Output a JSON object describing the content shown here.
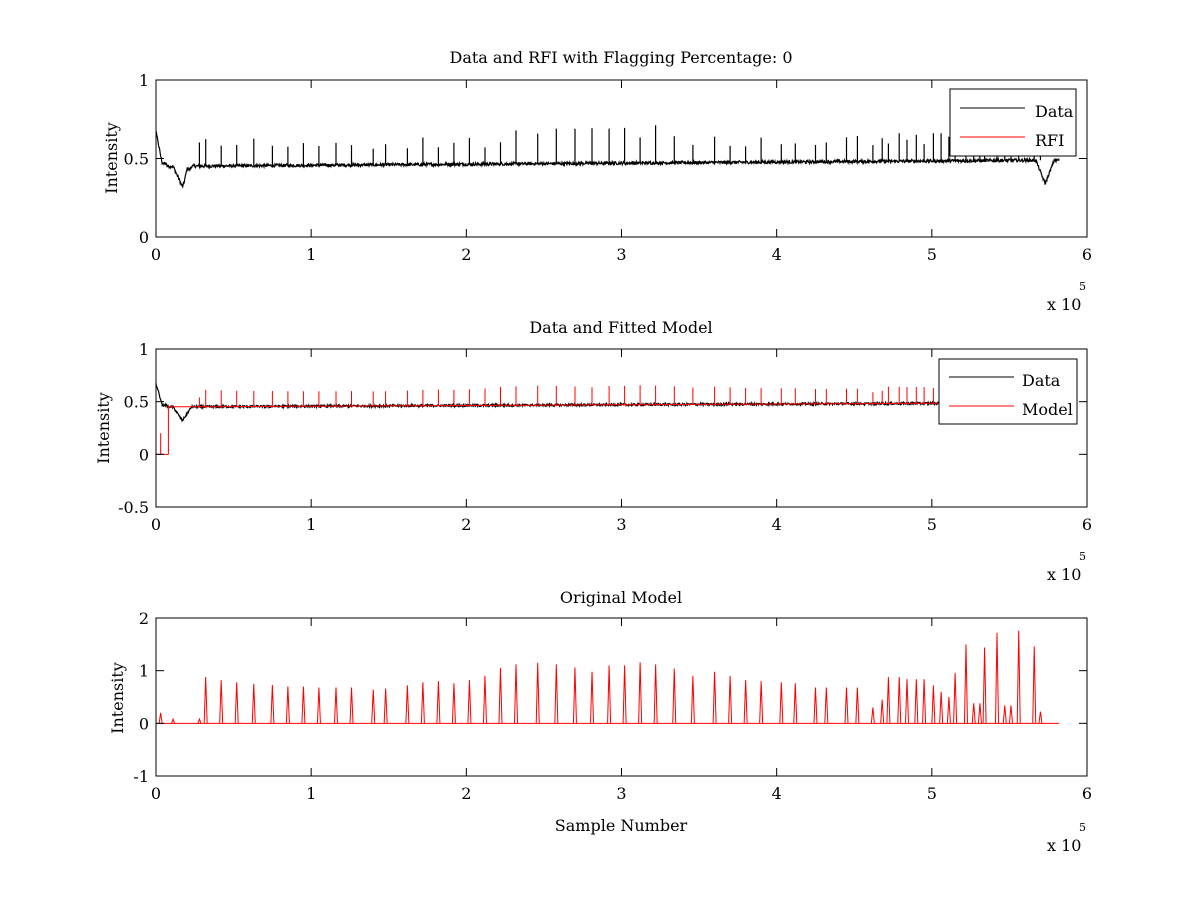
{
  "chart_data": [
    {
      "type": "line",
      "title": "Data and RFI with Flagging Percentage: 0",
      "xlabel": "",
      "ylabel": "Intensity",
      "xlim": [
        0,
        600000
      ],
      "ylim": [
        0,
        1
      ],
      "x_ticks": [
        0,
        1,
        2,
        3,
        4,
        5,
        6
      ],
      "y_ticks": [
        "0",
        "0.5",
        "1"
      ],
      "x_multiplier": {
        "text": "x 10",
        "exponent": "5"
      },
      "grid": false,
      "legend_position": "top-right",
      "series": [
        {
          "name": "Data",
          "color": "#000000",
          "baseline": {
            "start": 0.45,
            "end": 0.49
          },
          "spike_height": 0.6,
          "spike_count": 60,
          "dips": [
            {
              "x": 17000,
              "y": 0.32
            },
            {
              "x": 573000,
              "y": 0.34
            }
          ],
          "start_value": 0.67,
          "x_end": 582000
        },
        {
          "name": "RFI",
          "color": "#ff0000",
          "values": []
        }
      ]
    },
    {
      "type": "line",
      "title": "Data and Fitted Model",
      "xlabel": "",
      "ylabel": "Intensity",
      "xlim": [
        0,
        600000
      ],
      "ylim": [
        -0.5,
        1
      ],
      "x_ticks": [
        0,
        1,
        2,
        3,
        4,
        5,
        6
      ],
      "y_ticks": [
        "-0.5",
        "0",
        "0.5",
        "1"
      ],
      "x_multiplier": {
        "text": "x 10",
        "exponent": "5"
      },
      "grid": false,
      "legend_position": "top-right",
      "series": [
        {
          "name": "Data",
          "color": "#000000",
          "baseline": {
            "start": 0.45,
            "end": 0.49
          },
          "dips": [
            {
              "x": 17000,
              "y": 0.32
            }
          ],
          "start_value": 0.67,
          "x_end": 582000
        },
        {
          "name": "Model",
          "color": "#ff0000",
          "baseline": {
            "start": 0.45,
            "end": 0.49
          },
          "spike_height": 0.62,
          "step": {
            "x_from": 0,
            "x_to": 8000,
            "value": 0.0,
            "spike_at": 3000,
            "spike_value": 0.2
          },
          "x_end": 582000
        }
      ]
    },
    {
      "type": "line",
      "title": "Original Model",
      "xlabel": "Sample Number",
      "ylabel": "Intensity",
      "xlim": [
        0,
        600000
      ],
      "ylim": [
        -1,
        2
      ],
      "x_ticks": [
        0,
        1,
        2,
        3,
        4,
        5,
        6
      ],
      "y_ticks": [
        "-1",
        "0",
        "1",
        "2"
      ],
      "x_multiplier": {
        "text": "x 10",
        "exponent": "5"
      },
      "grid": false,
      "series": [
        {
          "name": "Model",
          "color": "#ff0000",
          "baseline": 0,
          "x_end": 582000,
          "spikes": [
            {
              "x": 3000,
              "y": 0.2
            },
            {
              "x": 11000,
              "y": 0.08
            },
            {
              "x": 28000,
              "y": 0.08
            },
            {
              "x": 32000,
              "y": 0.88
            },
            {
              "x": 42000,
              "y": 0.82
            },
            {
              "x": 52000,
              "y": 0.78
            },
            {
              "x": 63000,
              "y": 0.75
            },
            {
              "x": 75000,
              "y": 0.73
            },
            {
              "x": 85000,
              "y": 0.7
            },
            {
              "x": 95000,
              "y": 0.7
            },
            {
              "x": 105000,
              "y": 0.68
            },
            {
              "x": 116000,
              "y": 0.68
            },
            {
              "x": 126000,
              "y": 0.68
            },
            {
              "x": 140000,
              "y": 0.64
            },
            {
              "x": 148000,
              "y": 0.66
            },
            {
              "x": 162000,
              "y": 0.72
            },
            {
              "x": 172000,
              "y": 0.78
            },
            {
              "x": 182000,
              "y": 0.8
            },
            {
              "x": 192000,
              "y": 0.76
            },
            {
              "x": 202000,
              "y": 0.82
            },
            {
              "x": 212000,
              "y": 0.9
            },
            {
              "x": 222000,
              "y": 1.05
            },
            {
              "x": 232000,
              "y": 1.12
            },
            {
              "x": 246000,
              "y": 1.15
            },
            {
              "x": 258000,
              "y": 1.12
            },
            {
              "x": 270000,
              "y": 1.06
            },
            {
              "x": 281000,
              "y": 0.98
            },
            {
              "x": 292000,
              "y": 1.1
            },
            {
              "x": 302000,
              "y": 1.1
            },
            {
              "x": 312000,
              "y": 1.16
            },
            {
              "x": 322000,
              "y": 1.12
            },
            {
              "x": 334000,
              "y": 1.04
            },
            {
              "x": 346000,
              "y": 0.9
            },
            {
              "x": 360000,
              "y": 0.98
            },
            {
              "x": 370000,
              "y": 0.9
            },
            {
              "x": 380000,
              "y": 0.82
            },
            {
              "x": 390000,
              "y": 0.8
            },
            {
              "x": 403000,
              "y": 0.78
            },
            {
              "x": 412000,
              "y": 0.76
            },
            {
              "x": 425000,
              "y": 0.68
            },
            {
              "x": 432000,
              "y": 0.68
            },
            {
              "x": 445000,
              "y": 0.68
            },
            {
              "x": 452000,
              "y": 0.68
            },
            {
              "x": 462000,
              "y": 0.3
            },
            {
              "x": 468000,
              "y": 0.45
            },
            {
              "x": 472000,
              "y": 0.88
            },
            {
              "x": 479000,
              "y": 0.88
            },
            {
              "x": 484000,
              "y": 0.84
            },
            {
              "x": 490000,
              "y": 0.84
            },
            {
              "x": 495000,
              "y": 0.84
            },
            {
              "x": 501000,
              "y": 0.72
            },
            {
              "x": 506000,
              "y": 0.6
            },
            {
              "x": 511000,
              "y": 0.5
            },
            {
              "x": 515000,
              "y": 0.96
            },
            {
              "x": 522000,
              "y": 1.5
            },
            {
              "x": 527000,
              "y": 0.38
            },
            {
              "x": 531000,
              "y": 0.38
            },
            {
              "x": 534000,
              "y": 1.44
            },
            {
              "x": 542000,
              "y": 1.72
            },
            {
              "x": 547000,
              "y": 0.34
            },
            {
              "x": 551000,
              "y": 0.34
            },
            {
              "x": 556000,
              "y": 1.76
            },
            {
              "x": 566000,
              "y": 1.46
            },
            {
              "x": 570000,
              "y": 0.22
            }
          ]
        }
      ]
    }
  ]
}
